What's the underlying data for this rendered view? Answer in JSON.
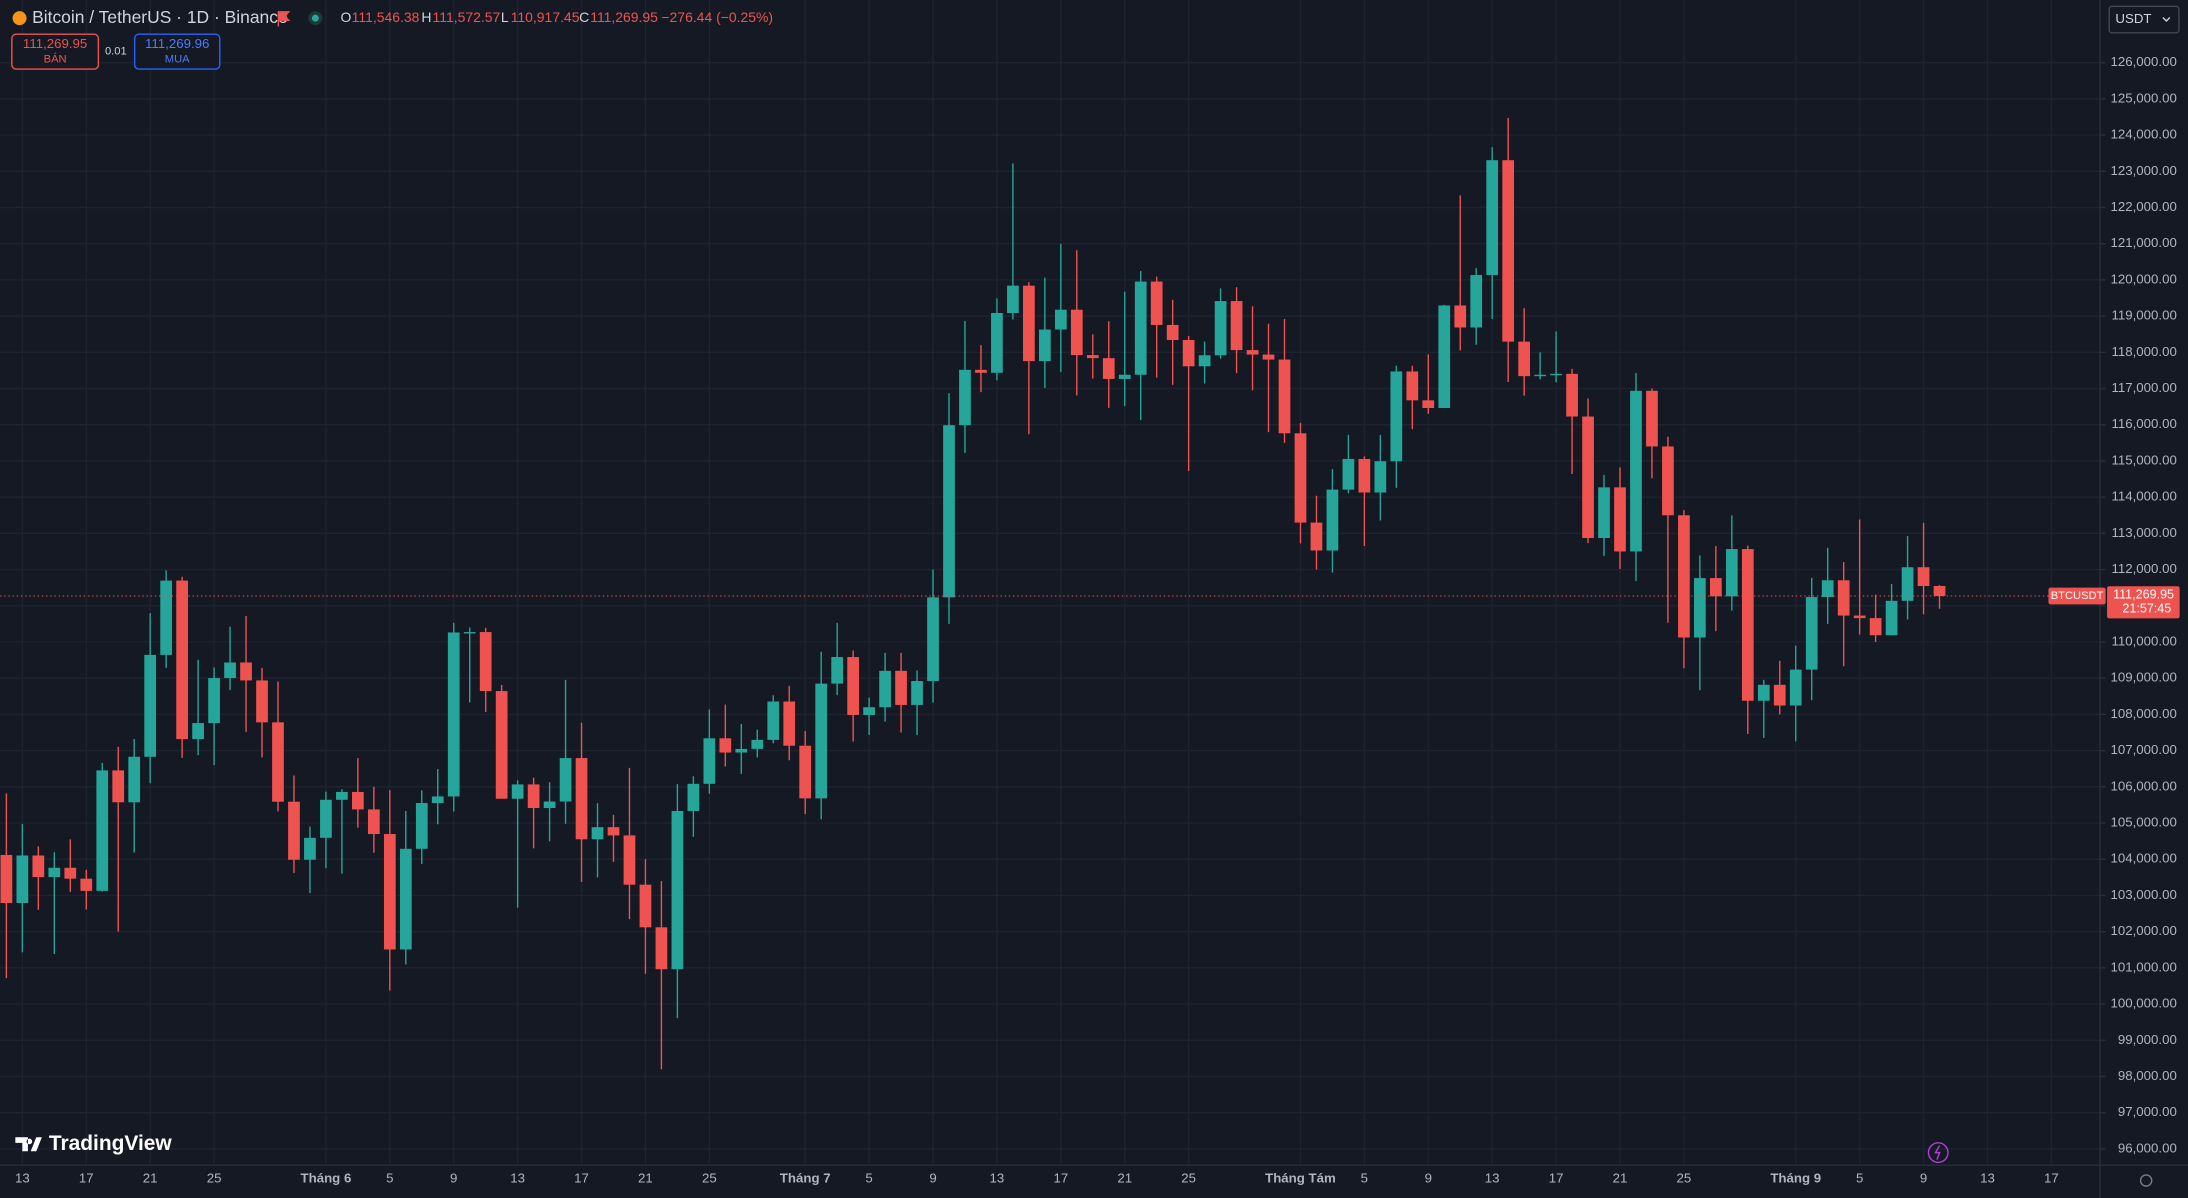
{
  "header": {
    "title": "Bitcoin / TetherUS · 1D · Binance",
    "o": "O",
    "open": "111,546.38",
    "h": "H",
    "high": "111,572.57",
    "l": "L",
    "low": "110,917.45",
    "c": "C",
    "close": "111,269.95",
    "change": "−276.44 (−0.25%)",
    "sell_price": "111,269.95",
    "sell": "BÁN",
    "spread": "0.01",
    "buy_price": "111,269.96",
    "buy": "MUA",
    "currency": "USDT",
    "brand": "TradingView"
  },
  "chart_data": {
    "type": "candlestick",
    "symbol_label": "BTCUSDT",
    "last_price_label": "111,269.95",
    "countdown": "21:57:45",
    "up_color": "#26a69a",
    "down_color": "#ef5350",
    "grid": true,
    "open": [
      104118,
      102791,
      104103,
      103507,
      103764,
      103463,
      103126,
      106454,
      105573,
      106830,
      109643,
      111696,
      107318,
      107761,
      109004,
      109434,
      108938,
      107781,
      105589,
      103985,
      104591,
      105642,
      105858,
      105376,
      104696,
      101508,
      104288,
      105552,
      105734,
      110263,
      110274,
      108645,
      105671,
      106066,
      105414,
      105594,
      106794,
      104551,
      104886,
      104658,
      103297,
      102120,
      100963,
      105333,
      106083,
      107340,
      106947,
      107047,
      107296,
      108356,
      107135,
      105681,
      108850,
      109584,
      107984,
      108198,
      109203,
      108262,
      108922,
      111233,
      115987,
      117516,
      117435,
      119086,
      119841,
      117758,
      118630,
      119177,
      117924,
      117840,
      117265,
      117380,
      119954,
      118756,
      118340,
      117614,
      117919,
      119415,
      118062,
      117938,
      117800,
      115764,
      113297,
      112527,
      114208,
      115055,
      114129,
      114992,
      117472,
      116674,
      116462,
      119294,
      118686,
      120134,
      123306,
      118295,
      117342,
      117380,
      117405,
      116227,
      112872,
      114271,
      112500,
      116937,
      115400,
      113500,
      110124,
      111764,
      111262,
      112566,
      108377,
      108817,
      108246,
      109237,
      111240,
      111705,
      110730,
      110659,
      110187,
      111137,
      112065,
      111546.38
    ],
    "high": [
      105819,
      104976,
      104356,
      104192,
      104550,
      103709,
      106660,
      107108,
      107320,
      110797,
      111980,
      111800,
      109506,
      109299,
      110422,
      110718,
      109284,
      108910,
      106313,
      104900,
      105866,
      105935,
      106794,
      106000,
      105909,
      105333,
      105900,
      106488,
      110530,
      110400,
      110392,
      108813,
      106179,
      106252,
      106128,
      108952,
      107771,
      105550,
      105226,
      106524,
      104000,
      103399,
      106074,
      106290,
      108135,
      108272,
      107735,
      107577,
      108528,
      108789,
      107540,
      109730,
      110529,
      109765,
      108460,
      109700,
      109700,
      109216,
      111999,
      116868,
      118869,
      118200,
      119488,
      123218,
      119940,
      120063,
      120998,
      120820,
      118499,
      118856,
      119676,
      120247,
      120090,
      119450,
      118451,
      118297,
      119766,
      119800,
      119273,
      118792,
      118920,
      116052,
      114040,
      114774,
      115720,
      115127,
      115716,
      117630,
      117630,
      117944,
      119311,
      122335,
      120324,
      123667,
      124474,
      119216,
      117999,
      118575,
      117543,
      116725,
      114615,
      114821,
      117429,
      117000,
      115667,
      113641,
      112390,
      112647,
      113496,
      112663,
      108956,
      109480,
      109900,
      111771,
      112600,
      112206,
      113384,
      111306,
      111600,
      112924,
      113292,
      111572.57
    ],
    "low": [
      100718,
      101429,
      102602,
      101383,
      103100,
      102612,
      103106,
      102000,
      104184,
      106100,
      109285,
      106800,
      106875,
      106600,
      108670,
      107516,
      106812,
      105322,
      103621,
      103068,
      103752,
      103600,
      104872,
      104179,
      100372,
      101095,
      103871,
      104964,
      105318,
      108331,
      108064,
      105671,
      102664,
      104300,
      104494,
      104980,
      103371,
      103500,
      103929,
      102345,
      100837,
      98200,
      99613,
      104622,
      105808,
      106562,
      106356,
      106811,
      107200,
      106733,
      105250,
      105100,
      108530,
      107250,
      107430,
      107800,
      107500,
      107429,
      108324,
      110500,
      115222,
      116900,
      117224,
      118905,
      115736,
      117017,
      117453,
      116812,
      117277,
      116467,
      116515,
      116128,
      117301,
      117103,
      114723,
      117138,
      117825,
      117427,
      116950,
      115796,
      115500,
      112722,
      112000,
      111920,
      114108,
      112650,
      113355,
      114259,
      115878,
      116300,
      116460,
      118050,
      118207,
      118920,
      117180,
      116803,
      117254,
      117172,
      114640,
      112732,
      112380,
      112015,
      111684,
      114520,
      110531,
      109274,
      108666,
      110300,
      110868,
      107463,
      107350,
      108000,
      107255,
      108393,
      110500,
      109329,
      110206,
      110000,
      110180,
      110621,
      110766,
      110917.45
    ],
    "close": [
      102791,
      104103,
      103507,
      103764,
      103463,
      103126,
      106454,
      105573,
      106830,
      109643,
      111696,
      107318,
      107761,
      109004,
      109434,
      108938,
      107781,
      105589,
      103985,
      104591,
      105642,
      105858,
      105376,
      104696,
      101508,
      104288,
      105552,
      105734,
      110263,
      110274,
      108645,
      105671,
      106066,
      105414,
      105594,
      106794,
      104551,
      104886,
      104658,
      103297,
      102120,
      100963,
      105333,
      106083,
      107340,
      106947,
      107047,
      107296,
      108356,
      107135,
      105681,
      108850,
      109584,
      107984,
      108198,
      109203,
      108262,
      108922,
      111233,
      115987,
      117516,
      117435,
      119086,
      119841,
      117758,
      118630,
      119177,
      117924,
      117840,
      117265,
      117380,
      119954,
      118756,
      118340,
      117614,
      117919,
      119415,
      118062,
      117938,
      117800,
      115764,
      113297,
      112527,
      114208,
      115055,
      114129,
      114992,
      117472,
      116674,
      116462,
      119294,
      118686,
      120134,
      123306,
      118295,
      117342,
      117380,
      117405,
      116227,
      112872,
      114271,
      112500,
      116937,
      115400,
      113500,
      110124,
      111764,
      111262,
      112566,
      108377,
      108817,
      108246,
      109237,
      111240,
      111705,
      110730,
      110659,
      110187,
      111137,
      112065,
      111546.38,
      111269.95
    ],
    "xlim": [
      -0.4,
      131.05
    ],
    "xticks": [
      {
        "value": 1,
        "label": "13"
      },
      {
        "value": 5,
        "label": "17"
      },
      {
        "value": 9,
        "label": "21"
      },
      {
        "value": 13,
        "label": "25"
      },
      {
        "value": 20,
        "label": "Tháng 6"
      },
      {
        "value": 24,
        "label": "5"
      },
      {
        "value": 28,
        "label": "9"
      },
      {
        "value": 32,
        "label": "13"
      },
      {
        "value": 36,
        "label": "17"
      },
      {
        "value": 40,
        "label": "21"
      },
      {
        "value": 44,
        "label": "25"
      },
      {
        "value": 50,
        "label": "Tháng 7"
      },
      {
        "value": 54,
        "label": "5"
      },
      {
        "value": 58,
        "label": "9"
      },
      {
        "value": 62,
        "label": "13"
      },
      {
        "value": 66,
        "label": "17"
      },
      {
        "value": 70,
        "label": "21"
      },
      {
        "value": 74,
        "label": "25"
      },
      {
        "value": 81,
        "label": "Tháng Tám"
      },
      {
        "value": 85,
        "label": "5"
      },
      {
        "value": 89,
        "label": "9"
      },
      {
        "value": 93,
        "label": "13"
      },
      {
        "value": 97,
        "label": "17"
      },
      {
        "value": 101,
        "label": "21"
      },
      {
        "value": 105,
        "label": "25"
      },
      {
        "value": 112,
        "label": "Tháng 9"
      },
      {
        "value": 116,
        "label": "5"
      },
      {
        "value": 120,
        "label": "9"
      },
      {
        "value": 124,
        "label": "13"
      },
      {
        "value": 128,
        "label": "17"
      }
    ],
    "ylim": [
      95550,
      127730
    ],
    "yticks": [
      {
        "value": 96000,
        "label": "96,000.00"
      },
      {
        "value": 97000,
        "label": "97,000.00"
      },
      {
        "value": 98000,
        "label": "98,000.00"
      },
      {
        "value": 99000,
        "label": "99,000.00"
      },
      {
        "value": 100000,
        "label": "100,000.00"
      },
      {
        "value": 101000,
        "label": "101,000.00"
      },
      {
        "value": 102000,
        "label": "102,000.00"
      },
      {
        "value": 103000,
        "label": "103,000.00"
      },
      {
        "value": 104000,
        "label": "104,000.00"
      },
      {
        "value": 105000,
        "label": "105,000.00"
      },
      {
        "value": 106000,
        "label": "106,000.00"
      },
      {
        "value": 107000,
        "label": "107,000.00"
      },
      {
        "value": 108000,
        "label": "108,000.00"
      },
      {
        "value": 109000,
        "label": "109,000.00"
      },
      {
        "value": 110000,
        "label": "110,000.00"
      },
      {
        "value": 111000,
        "label": "111,000.00"
      },
      {
        "value": 112000,
        "label": "112,000.00"
      },
      {
        "value": 113000,
        "label": "113,000.00"
      },
      {
        "value": 114000,
        "label": "114,000.00"
      },
      {
        "value": 115000,
        "label": "115,000.00"
      },
      {
        "value": 116000,
        "label": "116,000.00"
      },
      {
        "value": 117000,
        "label": "117,000.00"
      },
      {
        "value": 118000,
        "label": "118,000.00"
      },
      {
        "value": 119000,
        "label": "119,000.00"
      },
      {
        "value": 120000,
        "label": "120,000.00"
      },
      {
        "value": 121000,
        "label": "121,000.00"
      },
      {
        "value": 122000,
        "label": "122,000.00"
      },
      {
        "value": 123000,
        "label": "123,000.00"
      },
      {
        "value": 124000,
        "label": "124,000.00"
      },
      {
        "value": 125000,
        "label": "125,000.00"
      },
      {
        "value": 126000,
        "label": "126,000.00"
      }
    ]
  }
}
